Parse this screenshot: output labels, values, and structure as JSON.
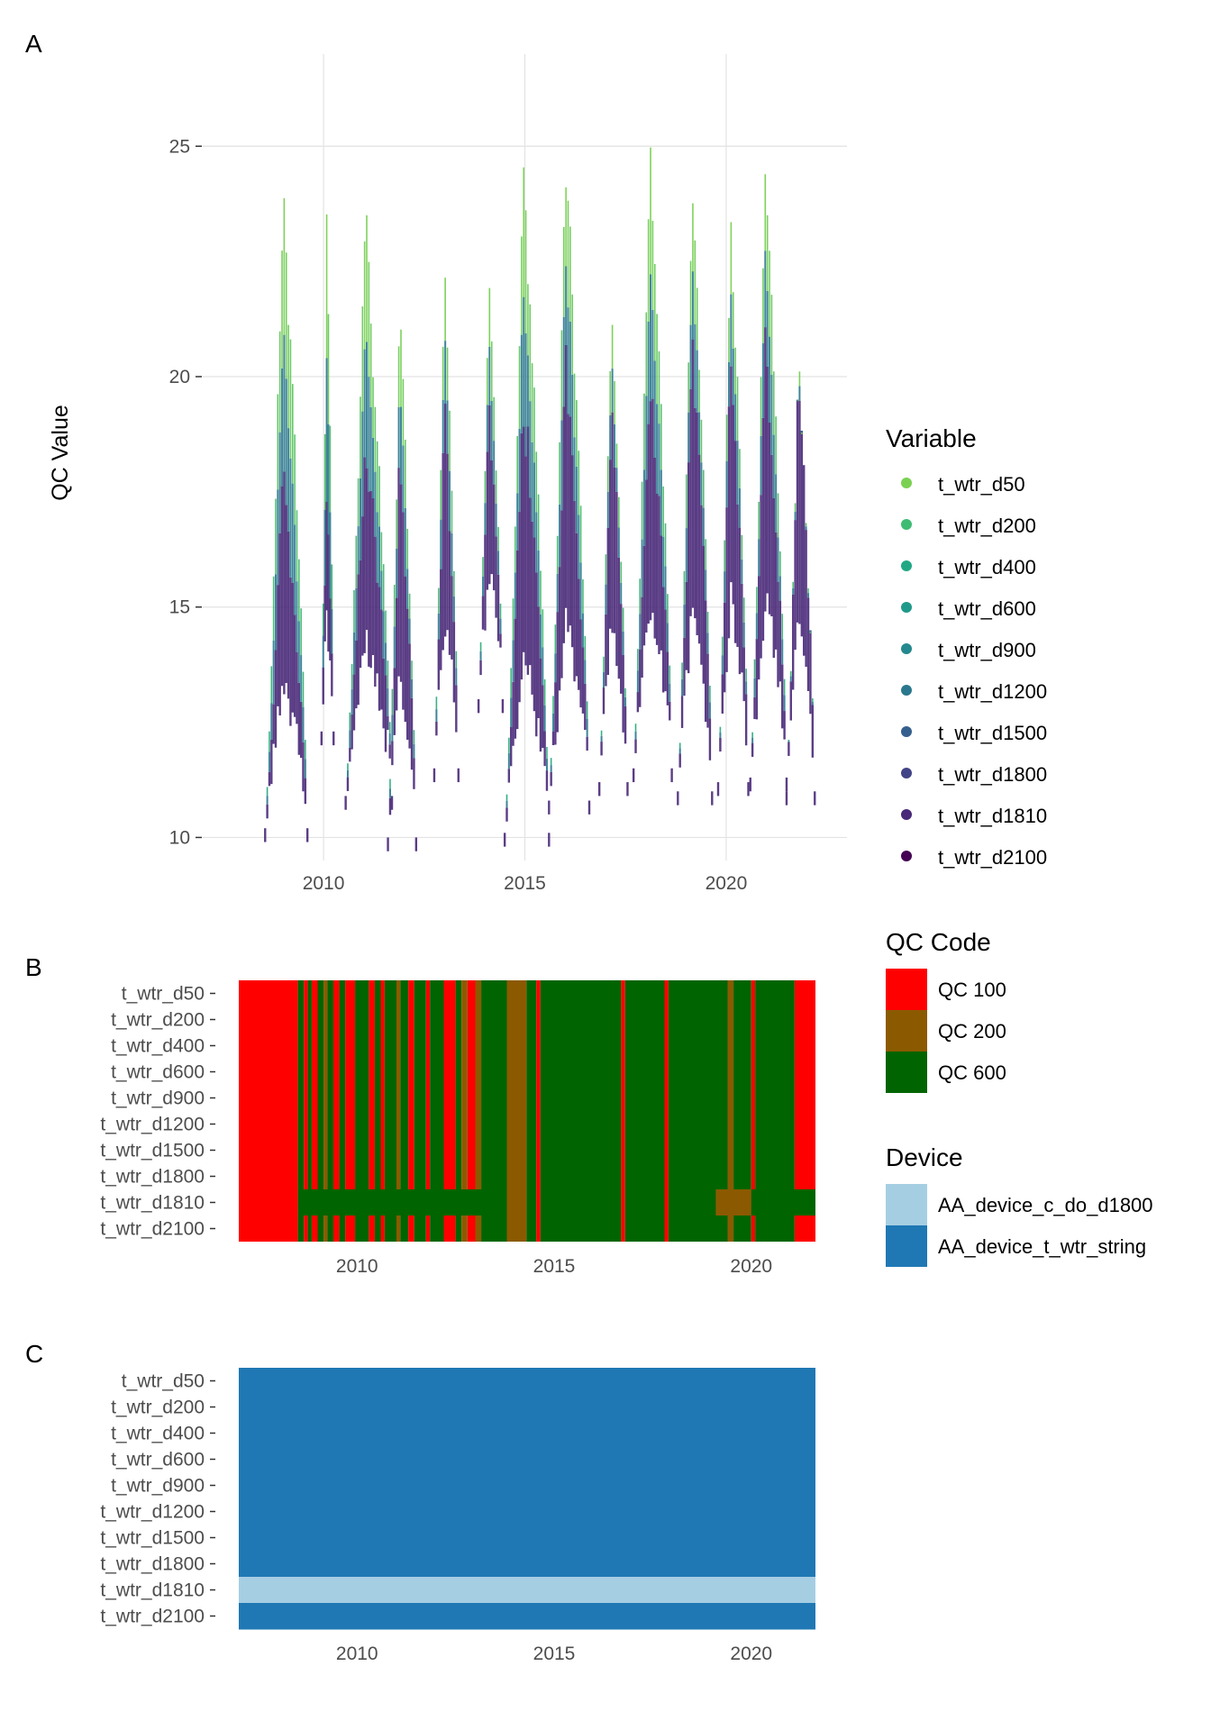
{
  "panels": {
    "a": "A",
    "b": "B",
    "c": "C"
  },
  "chart_data": [
    {
      "panel": "A",
      "type": "line",
      "xlabel": "",
      "ylabel": "QC Value",
      "xlim": [
        2007,
        2023
      ],
      "ylim": [
        9.5,
        27
      ],
      "x_ticks": [
        2010,
        2015,
        2020
      ],
      "x_tick_labels": [
        "2010",
        "2015",
        "2020"
      ],
      "y_ticks": [
        10,
        15,
        20,
        25
      ],
      "y_tick_labels": [
        "10",
        "15",
        "20",
        "25"
      ],
      "grid": true,
      "legend": {
        "title": "Variable",
        "placement": "right",
        "items": [
          {
            "label": "t_wtr_d50",
            "color": "#7AD151"
          },
          {
            "label": "t_wtr_d200",
            "color": "#3FBC73"
          },
          {
            "label": "t_wtr_d400",
            "color": "#22A884"
          },
          {
            "label": "t_wtr_d600",
            "color": "#1F9A8A"
          },
          {
            "label": "t_wtr_d900",
            "color": "#23898E"
          },
          {
            "label": "t_wtr_d1200",
            "color": "#2A788E"
          },
          {
            "label": "t_wtr_d1500",
            "color": "#355F8D"
          },
          {
            "label": "t_wtr_d1800",
            "color": "#414487"
          },
          {
            "label": "t_wtr_d1810",
            "color": "#482878"
          },
          {
            "label": "t_wtr_d2100",
            "color": "#440154"
          }
        ]
      },
      "seasons": [
        {
          "start": 2008.55,
          "end": 2009.6,
          "min": 10.2,
          "surface_peak": 24.9,
          "deep_peak": 18.5
        },
        {
          "start": 2009.95,
          "end": 2010.25,
          "min": 12.3,
          "surface_peak": 24.0,
          "deep_peak": 18.0
        },
        {
          "start": 2010.55,
          "end": 2011.7,
          "min": 10.9,
          "surface_peak": 24.2,
          "deep_peak": 19.5
        },
        {
          "start": 2011.6,
          "end": 2012.3,
          "min": 10.0,
          "surface_peak": 22.1,
          "deep_peak": 19.0
        },
        {
          "start": 2012.75,
          "end": 2013.35,
          "min": 11.5,
          "surface_peak": 23.5,
          "deep_peak": 20.0
        },
        {
          "start": 2013.85,
          "end": 2014.45,
          "min": 13.0,
          "surface_peak": 22.6,
          "deep_peak": 20.0
        },
        {
          "start": 2014.5,
          "end": 2015.6,
          "min": 10.1,
          "surface_peak": 25.2,
          "deep_peak": 20.5
        },
        {
          "start": 2015.6,
          "end": 2016.6,
          "min": 10.8,
          "surface_peak": 25.6,
          "deep_peak": 21.0
        },
        {
          "start": 2016.85,
          "end": 2017.55,
          "min": 11.2,
          "surface_peak": 22.2,
          "deep_peak": 20.0
        },
        {
          "start": 2017.7,
          "end": 2018.65,
          "min": 11.5,
          "surface_peak": 26.1,
          "deep_peak": 21.0
        },
        {
          "start": 2018.8,
          "end": 2019.65,
          "min": 11.0,
          "surface_peak": 24.7,
          "deep_peak": 21.5
        },
        {
          "start": 2019.8,
          "end": 2020.55,
          "min": 11.2,
          "surface_peak": 24.4,
          "deep_peak": 21.5
        },
        {
          "start": 2020.6,
          "end": 2021.5,
          "min": 11.3,
          "surface_peak": 25.3,
          "deep_peak": 21.5
        },
        {
          "start": 2021.5,
          "end": 2022.2,
          "min": 11.0,
          "surface_peak": 21.2,
          "deep_peak": 21.2
        }
      ]
    },
    {
      "panel": "B",
      "type": "heatmap",
      "xlim": [
        2007,
        2023
      ],
      "x_ticks": [
        2010,
        2015,
        2020
      ],
      "x_tick_labels": [
        "2010",
        "2015",
        "2020"
      ],
      "rows": [
        "t_wtr_d50",
        "t_wtr_d200",
        "t_wtr_d400",
        "t_wtr_d600",
        "t_wtr_d900",
        "t_wtr_d1200",
        "t_wtr_d1500",
        "t_wtr_d1800",
        "t_wtr_d1810",
        "t_wtr_d2100"
      ],
      "data_range": [
        2007.0,
        2022.35
      ],
      "legend": {
        "title": "QC Code",
        "items": [
          {
            "label": "QC 100",
            "color": "#FF0000"
          },
          {
            "label": "QC 200",
            "color": "#8B5A00"
          },
          {
            "label": "QC 600",
            "color": "#006400"
          }
        ]
      },
      "segments": [
        {
          "start": 2007.0,
          "end": 2008.5,
          "code": "QC 100"
        },
        {
          "start": 2008.5,
          "end": 2008.65,
          "code": "QC 600"
        },
        {
          "start": 2008.65,
          "end": 2008.75,
          "code": "QC 100"
        },
        {
          "start": 2008.75,
          "end": 2008.85,
          "code": "QC 600"
        },
        {
          "start": 2008.85,
          "end": 2009.0,
          "code": "QC 100"
        },
        {
          "start": 2009.0,
          "end": 2009.15,
          "code": "QC 600"
        },
        {
          "start": 2009.15,
          "end": 2009.25,
          "code": "QC 200"
        },
        {
          "start": 2009.25,
          "end": 2009.4,
          "code": "QC 600"
        },
        {
          "start": 2009.4,
          "end": 2009.55,
          "code": "QC 100"
        },
        {
          "start": 2009.55,
          "end": 2009.7,
          "code": "QC 600"
        },
        {
          "start": 2009.7,
          "end": 2009.95,
          "code": "QC 100"
        },
        {
          "start": 2009.95,
          "end": 2010.3,
          "code": "QC 600"
        },
        {
          "start": 2010.3,
          "end": 2010.45,
          "code": "QC 100"
        },
        {
          "start": 2010.45,
          "end": 2010.6,
          "code": "QC 600"
        },
        {
          "start": 2010.6,
          "end": 2010.7,
          "code": "QC 100"
        },
        {
          "start": 2010.7,
          "end": 2011.0,
          "code": "QC 600"
        },
        {
          "start": 2011.0,
          "end": 2011.1,
          "code": "QC 200"
        },
        {
          "start": 2011.1,
          "end": 2011.3,
          "code": "QC 600"
        },
        {
          "start": 2011.3,
          "end": 2011.45,
          "code": "QC 100"
        },
        {
          "start": 2011.45,
          "end": 2011.75,
          "code": "QC 600"
        },
        {
          "start": 2011.75,
          "end": 2011.85,
          "code": "QC 100"
        },
        {
          "start": 2011.85,
          "end": 2012.2,
          "code": "QC 600"
        },
        {
          "start": 2012.2,
          "end": 2012.5,
          "code": "QC 100"
        },
        {
          "start": 2012.5,
          "end": 2012.65,
          "code": "QC 600"
        },
        {
          "start": 2012.65,
          "end": 2012.8,
          "code": "QC 200"
        },
        {
          "start": 2012.8,
          "end": 2013.0,
          "code": "QC 100"
        },
        {
          "start": 2013.0,
          "end": 2013.15,
          "code": "QC 200"
        },
        {
          "start": 2013.15,
          "end": 2013.8,
          "code": "QC 600"
        },
        {
          "start": 2013.8,
          "end": 2014.3,
          "code": "QC 200"
        },
        {
          "start": 2014.3,
          "end": 2014.55,
          "code": "QC 600"
        },
        {
          "start": 2014.55,
          "end": 2014.65,
          "code": "QC 100"
        },
        {
          "start": 2014.65,
          "end": 2016.7,
          "code": "QC 600"
        },
        {
          "start": 2016.7,
          "end": 2016.8,
          "code": "QC 100"
        },
        {
          "start": 2016.8,
          "end": 2017.8,
          "code": "QC 600"
        },
        {
          "start": 2017.8,
          "end": 2017.9,
          "code": "QC 100"
        },
        {
          "start": 2017.9,
          "end": 2019.4,
          "code": "QC 600"
        },
        {
          "start": 2019.4,
          "end": 2019.55,
          "code": "QC 200"
        },
        {
          "start": 2019.55,
          "end": 2020.0,
          "code": "QC 600"
        },
        {
          "start": 2020.0,
          "end": 2020.1,
          "code": "QC 100"
        },
        {
          "start": 2020.1,
          "end": 2021.1,
          "code": "QC 600"
        },
        {
          "start": 2021.1,
          "end": 2022.35,
          "code": "QC 100"
        }
      ],
      "row_overrides": [
        {
          "row": "t_wtr_d1810",
          "start": 2008.6,
          "end": 2011.0,
          "code": "QC 600"
        },
        {
          "row": "t_wtr_d1810",
          "start": 2011.0,
          "end": 2013.7,
          "code": "QC 600"
        },
        {
          "row": "t_wtr_d1810",
          "start": 2019.1,
          "end": 2020.0,
          "code": "QC 200"
        },
        {
          "row": "t_wtr_d1810",
          "start": 2020.0,
          "end": 2022.35,
          "code": "QC 600"
        }
      ]
    },
    {
      "panel": "C",
      "type": "heatmap",
      "xlim": [
        2007,
        2023
      ],
      "x_ticks": [
        2010,
        2015,
        2020
      ],
      "x_tick_labels": [
        "2010",
        "2015",
        "2020"
      ],
      "rows": [
        "t_wtr_d50",
        "t_wtr_d200",
        "t_wtr_d400",
        "t_wtr_d600",
        "t_wtr_d900",
        "t_wtr_d1200",
        "t_wtr_d1500",
        "t_wtr_d1800",
        "t_wtr_d1810",
        "t_wtr_d2100"
      ],
      "data_range": [
        2007.0,
        2022.35
      ],
      "legend": {
        "title": "Device",
        "items": [
          {
            "label": "AA_device_c_do_d1800",
            "color": "#A6CEE3"
          },
          {
            "label": "AA_device_t_wtr_string",
            "color": "#1F78B4"
          }
        ]
      },
      "row_values": [
        "AA_device_t_wtr_string",
        "AA_device_t_wtr_string",
        "AA_device_t_wtr_string",
        "AA_device_t_wtr_string",
        "AA_device_t_wtr_string",
        "AA_device_t_wtr_string",
        "AA_device_t_wtr_string",
        "AA_device_t_wtr_string",
        "AA_device_c_do_d1800",
        "AA_device_t_wtr_string"
      ]
    }
  ]
}
